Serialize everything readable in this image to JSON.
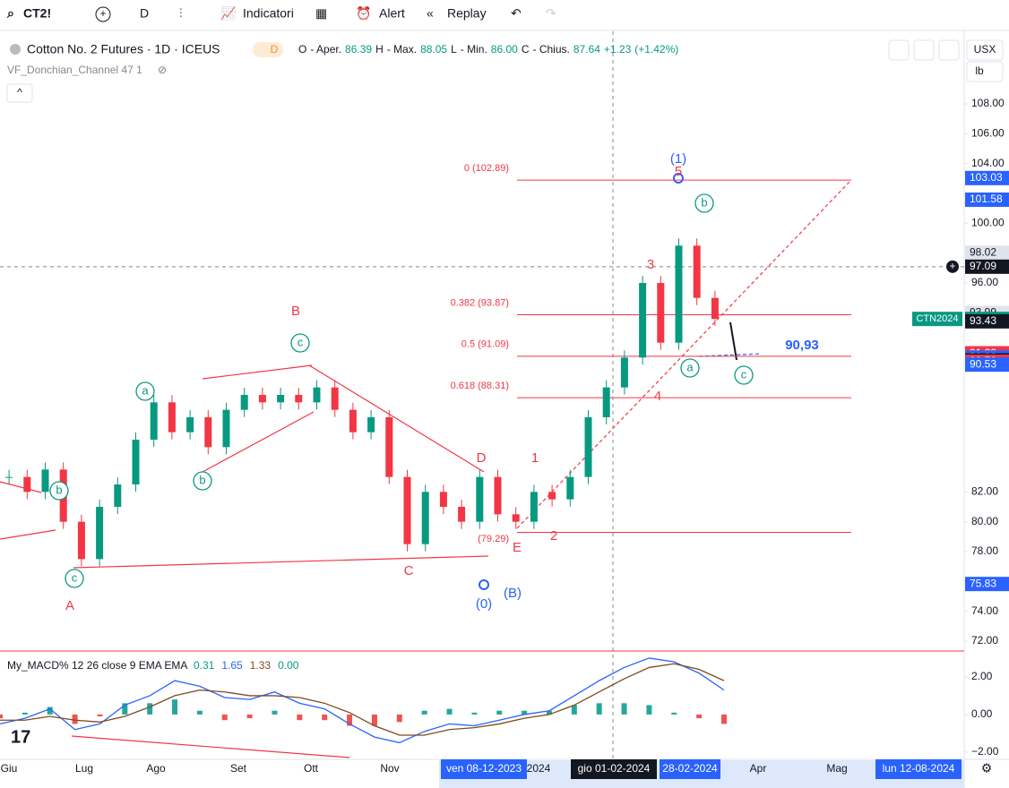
{
  "toolbar": {
    "symbol": "CT2!",
    "interval": "D",
    "indicators": "Indicatori",
    "alert": "Alert",
    "replay": "Replay"
  },
  "legend": {
    "title": "Cotton No. 2 Futures · 1D · ICEUS",
    "badge": "D",
    "ohlc": [
      {
        "text": "O",
        "color": "#131722"
      },
      {
        "text": "- Aper.",
        "color": "#131722"
      },
      {
        "text": "86.39",
        "color": "#089981"
      },
      {
        "text": "H",
        "color": "#131722"
      },
      {
        "text": "- Max.",
        "color": "#131722"
      },
      {
        "text": "88.05",
        "color": "#089981"
      },
      {
        "text": "L",
        "color": "#131722"
      },
      {
        "text": "- Min.",
        "color": "#131722"
      },
      {
        "text": "86.00",
        "color": "#089981"
      },
      {
        "text": "C",
        "color": "#131722"
      },
      {
        "text": "- Chius.",
        "color": "#131722"
      },
      {
        "text": "87.64",
        "color": "#089981"
      },
      {
        "text": "+1.23",
        "color": "#089981"
      },
      {
        "text": "(+1.42%)",
        "color": "#089981"
      }
    ],
    "indicator": "VF_Donchian_Channel 47 1"
  },
  "scale_header": {
    "currency": "USX",
    "unit": "lb"
  },
  "price_scale": {
    "ylim": [
      71.4,
      112.74
    ],
    "ticks": [
      {
        "value": 108,
        "label": "108.00"
      },
      {
        "value": 106,
        "label": "106.00"
      },
      {
        "value": 104,
        "label": "104.00"
      },
      {
        "value": 100,
        "label": "100.00"
      },
      {
        "value": 96,
        "label": "96.00"
      },
      {
        "value": 82,
        "label": "82.00"
      },
      {
        "value": 80,
        "label": "80.00"
      },
      {
        "value": 78,
        "label": "78.00"
      },
      {
        "value": 74,
        "label": "74.00"
      },
      {
        "value": 72,
        "label": "72.00"
      }
    ],
    "price_labels": [
      {
        "value": 103.03,
        "bg": "#2962ff",
        "fg": "#fff"
      },
      {
        "value": 101.58,
        "bg": "#2962ff",
        "fg": "#fff"
      },
      {
        "value": 98.02,
        "bg": "#e0e3eb",
        "fg": "#131722"
      },
      {
        "value": 97.09,
        "bg": "#131722",
        "fg": "#fff"
      },
      {
        "value": 93.99,
        "bg": "#e0e3eb",
        "fg": "#131722"
      },
      {
        "value": 93.59,
        "bg": "#089981",
        "fg": "#fff"
      },
      {
        "value": 93.43,
        "bg": "#131722",
        "fg": "#fff"
      },
      {
        "value": 91.28,
        "bg": "#2962ff",
        "fg": "#fff"
      },
      {
        "value": 91.28,
        "bg": "#f23645",
        "fg": "#fff"
      },
      {
        "value": 91.28,
        "bg": "#f23645",
        "fg": "#fff"
      },
      {
        "value": 91,
        "label": "91.00",
        "bg": "#2962ff",
        "fg": "#fff"
      },
      {
        "value": 90.81,
        "bg": "#131722",
        "fg": "#fff"
      },
      {
        "value": 90.72,
        "bg": "#f23645",
        "fg": "#fff"
      },
      {
        "value": 90.72,
        "bg": "#f23645",
        "fg": "#fff"
      },
      {
        "value": 90.53,
        "bg": "#2962ff",
        "fg": "#fff"
      },
      {
        "value": 75.83,
        "bg": "#2962ff",
        "fg": "#fff"
      }
    ],
    "symbol_label": "CTN2024",
    "crosshair": 97.09
  },
  "fib_levels": [
    {
      "label": "0 (102.89)",
      "value": 102.89
    },
    {
      "label": "0.382 (93.87)",
      "value": 93.87
    },
    {
      "label": "0.5 (91.09)",
      "value": 91.09
    },
    {
      "label": "0.618 (88.31)",
      "value": 88.31
    },
    {
      "label": "(79.29)",
      "value": 79.29
    }
  ],
  "closes": [
    83,
    82,
    83.5,
    80,
    77.5,
    81,
    82.5,
    85.5,
    88,
    86,
    87,
    85,
    87.5,
    88.5,
    88,
    88.5,
    88,
    89,
    87.5,
    86,
    87,
    83,
    78.5,
    82,
    81,
    80,
    83,
    80.5,
    80,
    82,
    81.5,
    83,
    87,
    89,
    91,
    96,
    92,
    98.5,
    95,
    93.6
  ],
  "annotations": [
    {
      "text": "(1)"
    },
    {
      "text": "5"
    },
    {
      "text": "b"
    },
    {
      "text": "3"
    },
    {
      "text": "a"
    },
    {
      "text": "c"
    },
    {
      "text": "90,93"
    },
    {
      "text": "4"
    },
    {
      "text": "B"
    },
    {
      "text": "c"
    },
    {
      "text": "a"
    },
    {
      "text": "b"
    },
    {
      "text": "b"
    },
    {
      "text": "c"
    },
    {
      "text": "A"
    },
    {
      "text": "D"
    },
    {
      "text": "1"
    },
    {
      "text": "2"
    },
    {
      "text": "E"
    },
    {
      "text": "C"
    },
    {
      "text": "(0)"
    },
    {
      "text": "(B)"
    }
  ],
  "macd": {
    "title": "My_MACD% 12 26 close 9 EMA EMA",
    "values": [
      {
        "text": "0.31",
        "color": "#089981"
      },
      {
        "text": "1.65",
        "color": "#2962ff"
      },
      {
        "text": "1.33",
        "color": "#7f4b1e"
      },
      {
        "text": "0.00",
        "color": "#089981"
      }
    ],
    "ylim": [
      -2.48,
      3.33
    ],
    "ticks": [
      {
        "value": 2,
        "label": "2.00"
      },
      {
        "value": 0,
        "label": "0.00"
      },
      {
        "value": -2,
        "label": "−2.00"
      }
    ],
    "macd_line": [
      -0.5,
      -0.2,
      0.3,
      -0.8,
      -0.5,
      0.5,
      1,
      1.8,
      1.5,
      0.9,
      0.8,
      1.2,
      0.6,
      0.3,
      -0.5,
      -1.2,
      -1.5,
      -0.9,
      -0.5,
      -0.6,
      -0.3,
      0,
      0.2,
      1,
      1.8,
      2.5,
      3,
      2.8,
      2.2,
      1.3
    ],
    "signal_line": [
      -0.3,
      -0.3,
      -0.1,
      -0.3,
      -0.4,
      -0.1,
      0.4,
      1,
      1.3,
      1.2,
      1,
      1,
      0.9,
      0.6,
      0.1,
      -0.6,
      -1.1,
      -1.1,
      -0.8,
      -0.7,
      -0.5,
      -0.2,
      0,
      0.5,
      1.2,
      1.9,
      2.5,
      2.7,
      2.4,
      1.8
    ],
    "histogram": [
      -0.2,
      0.1,
      0.4,
      -0.5,
      -0.1,
      0.6,
      0.6,
      0.8,
      0.2,
      -0.3,
      -0.2,
      0.2,
      -0.3,
      -0.3,
      -0.6,
      -0.6,
      -0.4,
      0.2,
      0.3,
      0.1,
      0.2,
      0.2,
      0.2,
      0.5,
      0.6,
      0.6,
      0.5,
      0.1,
      -0.2,
      -0.5
    ]
  },
  "time_axis": [
    {
      "text": "Giu"
    },
    {
      "text": "Lug"
    },
    {
      "text": "Ago"
    },
    {
      "text": "Set"
    },
    {
      "text": "Ott"
    },
    {
      "text": "Nov"
    },
    {
      "text": "ven 08-12-2023"
    },
    {
      "text": "2024"
    },
    {
      "text": "gio 01-02-2024"
    },
    {
      "text": "28-02-2024"
    },
    {
      "text": "Apr"
    },
    {
      "text": "Mag"
    },
    {
      "text": "lun 12-08-2024"
    }
  ]
}
